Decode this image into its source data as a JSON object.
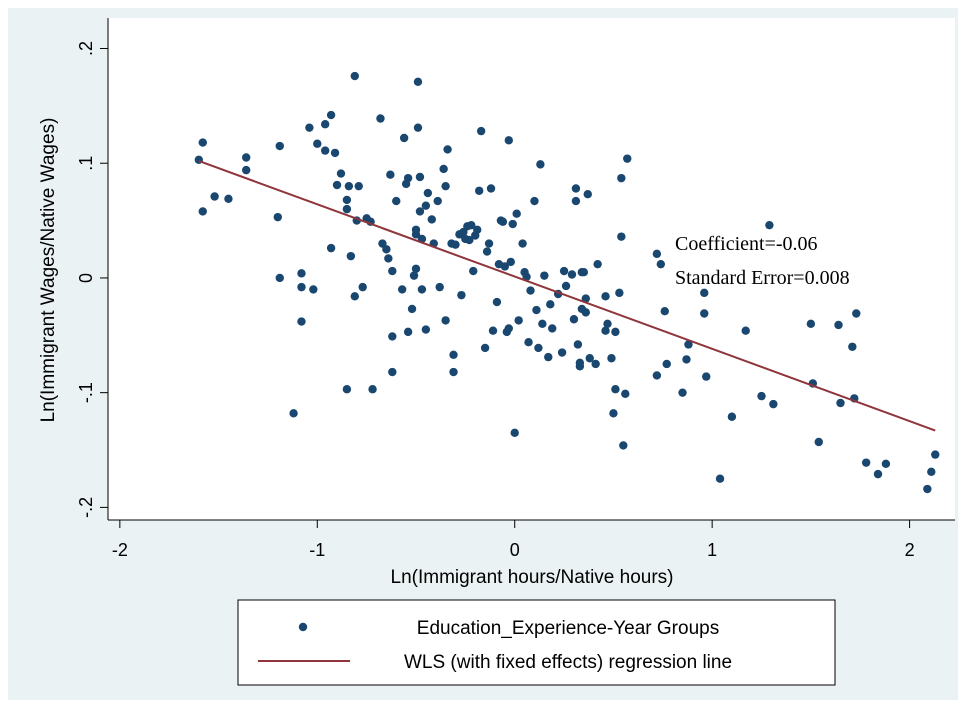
{
  "chart_data": {
    "type": "scatter",
    "xlabel": "Ln(Immigrant hours/Native hours)",
    "ylabel": "Ln(Immigrant Wages/Native Wages)",
    "annotations": [
      "Coefficient=-0.06",
      "Standard Error=0.008"
    ],
    "xlim": [
      -2.06,
      2.23
    ],
    "ylim": [
      -0.211,
      0.2266
    ],
    "xticks": [
      -2,
      -1,
      0,
      1,
      2
    ],
    "yticks": [
      {
        "value": -0.2,
        "label": "-.2"
      },
      {
        "value": -0.1,
        "label": "-.1"
      },
      0,
      {
        "value": 0.1,
        "label": ".1"
      },
      {
        "value": 0.2,
        "label": ".2"
      }
    ],
    "legend": "bottom",
    "series": [
      {
        "name": "Education_Experience-Year Groups",
        "type": "scatter",
        "color": "#1a476f",
        "x": [
          -1.6,
          -1.58,
          -1.58,
          -1.52,
          -1.45,
          -1.36,
          -1.36,
          -1.2,
          -1.19,
          -1.19,
          -1.08,
          -1.08,
          -1.08,
          -1.02,
          -1.12,
          -1.04,
          -1.0,
          -0.96,
          -0.96,
          -0.93,
          -0.91,
          -0.9,
          -0.88,
          -0.85,
          -0.85,
          -0.84,
          -0.83,
          -0.81,
          -0.81,
          -0.79,
          -0.8,
          -0.93,
          -0.85,
          -0.75,
          -0.73,
          -0.77,
          -0.72,
          -0.68,
          -0.67,
          -0.65,
          -0.64,
          -0.63,
          -0.62,
          -0.62,
          -0.62,
          -0.6,
          -0.57,
          -0.56,
          -0.55,
          -0.54,
          -0.52,
          -0.51,
          -0.5,
          -0.5,
          -0.5,
          -0.49,
          -0.49,
          -0.48,
          -0.48,
          -0.47,
          -0.47,
          -0.54,
          -0.45,
          -0.45,
          -0.44,
          -0.42,
          -0.41,
          -0.39,
          -0.38,
          -0.36,
          -0.35,
          -0.35,
          -0.34,
          -0.32,
          -0.3,
          -0.31,
          -0.31,
          -0.28,
          -0.27,
          -0.26,
          -0.25,
          -0.24,
          -0.23,
          -0.22,
          -0.21,
          -0.2,
          -0.19,
          -0.18,
          -0.17,
          -0.15,
          -0.14,
          -0.13,
          -0.12,
          -0.11,
          -0.09,
          -0.08,
          -0.07,
          -0.06,
          -0.05,
          -0.04,
          -0.03,
          -0.03,
          -0.02,
          -0.01,
          0.0,
          0.01,
          0.02,
          0.04,
          0.05,
          0.06,
          0.07,
          0.08,
          0.1,
          0.11,
          0.12,
          0.13,
          0.14,
          0.15,
          0.17,
          0.18,
          0.19,
          0.22,
          0.24,
          0.25,
          0.26,
          0.29,
          0.3,
          0.31,
          0.31,
          0.32,
          0.33,
          0.33,
          0.34,
          0.34,
          0.35,
          0.36,
          0.36,
          0.37,
          0.38,
          0.41,
          0.42,
          0.46,
          0.46,
          0.47,
          0.49,
          0.5,
          0.51,
          0.51,
          0.53,
          0.54,
          0.54,
          0.55,
          0.56,
          0.57,
          0.72,
          0.72,
          0.74,
          0.76,
          0.77,
          0.85,
          0.87,
          0.88,
          0.96,
          0.96,
          0.97,
          1.04,
          1.1,
          1.17,
          1.25,
          1.29,
          1.31,
          1.5,
          1.51,
          1.54,
          1.64,
          1.65,
          1.71,
          1.72,
          1.73,
          1.78,
          1.84,
          1.88,
          2.09,
          2.11,
          2.13
        ],
        "values": [
          0.103,
          0.118,
          0.058,
          0.071,
          0.069,
          0.105,
          0.094,
          0.053,
          0.115,
          0,
          0.004,
          -0.008,
          -0.038,
          -0.01,
          -0.118,
          0.131,
          0.117,
          0.134,
          0.111,
          0.142,
          0.109,
          0.081,
          0.091,
          0.068,
          0.06,
          0.08,
          0.019,
          0.176,
          -0.016,
          0.08,
          0.05,
          0.026,
          -0.097,
          0.052,
          0.049,
          -0.008,
          -0.097,
          0.139,
          0.03,
          0.025,
          0.017,
          0.09,
          0.006,
          -0.051,
          -0.082,
          0.067,
          -0.01,
          0.122,
          0.082,
          0.087,
          -0.027,
          0.002,
          0.038,
          0.042,
          0.008,
          0.171,
          0.131,
          0.088,
          0.058,
          0.034,
          -0.01,
          -0.047,
          -0.045,
          0.063,
          0.074,
          0.051,
          0.03,
          0.067,
          -0.008,
          0.095,
          0.08,
          -0.037,
          0.112,
          0.03,
          0.029,
          -0.067,
          -0.082,
          0.038,
          -0.015,
          0.04,
          0.034,
          0.045,
          0.033,
          0.046,
          0.006,
          0.037,
          0.042,
          0.076,
          0.128,
          -0.061,
          0.023,
          0.03,
          0.078,
          -0.046,
          -0.021,
          0.012,
          0.05,
          0.049,
          0.01,
          -0.047,
          0.12,
          -0.044,
          0.014,
          0.047,
          -0.135,
          0.056,
          -0.037,
          0.03,
          0.005,
          0.001,
          -0.056,
          -0.011,
          0.067,
          -0.028,
          -0.061,
          0.099,
          -0.04,
          0.002,
          -0.069,
          -0.023,
          -0.044,
          -0.014,
          -0.065,
          0.006,
          -0.007,
          0.003,
          -0.036,
          0.067,
          0.078,
          -0.058,
          -0.077,
          -0.074,
          0.005,
          -0.027,
          0.005,
          -0.018,
          -0.03,
          0.073,
          -0.07,
          -0.075,
          0.012,
          -0.046,
          -0.016,
          -0.04,
          -0.07,
          -0.118,
          -0.047,
          -0.097,
          -0.013,
          0.036,
          0.087,
          -0.146,
          -0.101,
          0.104,
          0.021,
          -0.085,
          0.012,
          -0.029,
          -0.075,
          -0.1,
          -0.071,
          -0.058,
          -0.013,
          -0.031,
          -0.086,
          -0.175,
          -0.121,
          -0.046,
          -0.103,
          0.046,
          -0.11,
          -0.04,
          -0.092,
          -0.143,
          -0.041,
          -0.109,
          -0.06,
          -0.105,
          -0.031,
          -0.161,
          -0.171,
          -0.162,
          -0.184,
          -0.169,
          -0.154
        ]
      },
      {
        "name": "WLS (with fixed effects) regression line",
        "type": "line",
        "color": "#90353b",
        "x": [
          -1.6,
          2.13
        ],
        "values": [
          0.102,
          -0.133
        ]
      }
    ]
  }
}
